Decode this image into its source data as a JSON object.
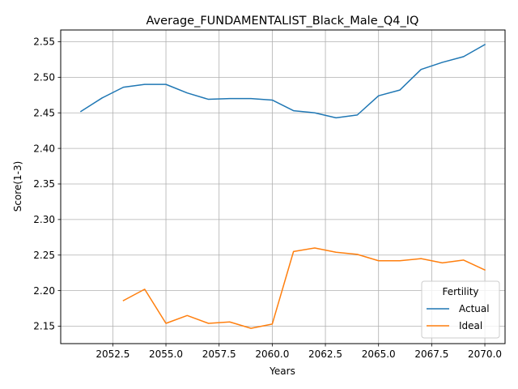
{
  "chart_data": {
    "type": "line",
    "title": "Average_FUNDAMENTALIST_Black_Male_Q4_IQ",
    "xlabel": "Years",
    "ylabel": "Score(1-3)",
    "xlim": [
      2050.05,
      2070.95
    ],
    "ylim": [
      2.1255,
      2.5665
    ],
    "xticks": [
      2052.5,
      2055.0,
      2057.5,
      2060.0,
      2062.5,
      2065.0,
      2067.5,
      2070.0
    ],
    "xtick_labels": [
      "2052.5",
      "2055.0",
      "2057.5",
      "2060.0",
      "2062.5",
      "2065.0",
      "2067.5",
      "2070.0"
    ],
    "yticks": [
      2.15,
      2.2,
      2.25,
      2.3,
      2.35,
      2.4,
      2.45,
      2.5,
      2.55
    ],
    "ytick_labels": [
      "2.15",
      "2.20",
      "2.25",
      "2.30",
      "2.35",
      "2.40",
      "2.45",
      "2.50",
      "2.55"
    ],
    "grid": true,
    "legend": {
      "title": "Fertility",
      "placement": "lower-right"
    },
    "series": [
      {
        "name": "Actual",
        "color": "#1f77b4",
        "x": [
          2051,
          2052,
          2053,
          2054,
          2055,
          2056,
          2057,
          2058,
          2059,
          2060,
          2061,
          2062,
          2063,
          2064,
          2065,
          2066,
          2067,
          2068,
          2069,
          2070
        ],
        "values": [
          2.452,
          2.471,
          2.486,
          2.49,
          2.49,
          2.478,
          2.469,
          2.47,
          2.47,
          2.468,
          2.453,
          2.45,
          2.443,
          2.447,
          2.474,
          2.482,
          2.511,
          2.521,
          2.529,
          2.546
        ]
      },
      {
        "name": "Ideal",
        "color": "#ff7f0e",
        "x": [
          2053,
          2054,
          2055,
          2056,
          2057,
          2058,
          2059,
          2060,
          2061,
          2062,
          2063,
          2064,
          2065,
          2066,
          2067,
          2068,
          2069,
          2070
        ],
        "values": [
          2.186,
          2.202,
          2.154,
          2.165,
          2.154,
          2.156,
          2.147,
          2.153,
          2.255,
          2.26,
          2.254,
          2.251,
          2.242,
          2.242,
          2.245,
          2.239,
          2.243,
          2.229
        ]
      }
    ]
  }
}
